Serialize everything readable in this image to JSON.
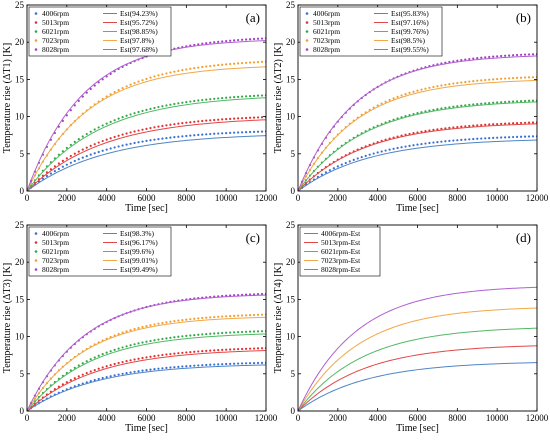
{
  "chart_data": [
    {
      "type": "line",
      "panel_label": "(a)",
      "xlabel": "Time [sec]",
      "ylabel": "Temperature rise (ΔT1) [K]",
      "xlim": [
        0,
        12000
      ],
      "ylim": [
        0,
        25
      ],
      "xticks": [
        0,
        2000,
        4000,
        6000,
        8000,
        10000,
        12000
      ],
      "yticks": [
        0,
        5,
        10,
        15,
        20,
        25
      ],
      "legend_position": "top-left",
      "series": [
        {
          "name": "4006rpm",
          "style": "markers",
          "color": "#3a6fd0",
          "final": 8.3,
          "tau": 3600
        },
        {
          "name": "Est(94.23%)",
          "style": "line",
          "color": "#4f86c6",
          "final": 7.8,
          "tau": 3900
        },
        {
          "name": "5013rpm",
          "style": "markers",
          "color": "#e03030",
          "final": 10.3,
          "tau": 3600
        },
        {
          "name": "Est(95.72%)",
          "style": "line",
          "color": "#e04848",
          "final": 10.0,
          "tau": 3800
        },
        {
          "name": "6021rpm",
          "style": "markers",
          "color": "#33a84a",
          "final": 13.3,
          "tau": 3500
        },
        {
          "name": "Est(98.85%)",
          "style": "line",
          "color": "#55b865",
          "final": 13.0,
          "tau": 3600
        },
        {
          "name": "7023rpm",
          "style": "markers",
          "color": "#f0a030",
          "final": 17.8,
          "tau": 3200
        },
        {
          "name": "Est(97.8%)",
          "style": "line",
          "color": "#f0a848",
          "final": 17.0,
          "tau": 3000
        },
        {
          "name": "8028rpm",
          "style": "markers",
          "color": "#a040c0",
          "final": 20.9,
          "tau": 3000
        },
        {
          "name": "Est(97.68%)",
          "style": "line",
          "color": "#b060d0",
          "final": 20.5,
          "tau": 2800
        }
      ]
    },
    {
      "type": "line",
      "panel_label": "(b)",
      "xlabel": "Time [sec]",
      "ylabel": "Temperature rise (ΔT2) [K]",
      "xlim": [
        0,
        12000
      ],
      "ylim": [
        0,
        25
      ],
      "xticks": [
        0,
        2000,
        4000,
        6000,
        8000,
        10000,
        12000
      ],
      "yticks": [
        0,
        5,
        10,
        15,
        20,
        25
      ],
      "legend_position": "top-left",
      "series": [
        {
          "name": "4006rpm",
          "style": "markers",
          "color": "#3a6fd0",
          "final": 7.6,
          "tau": 3500
        },
        {
          "name": "Est(95.83%)",
          "style": "line",
          "color": "#4f86c6",
          "final": 7.1,
          "tau": 3600
        },
        {
          "name": "5013rpm",
          "style": "markers",
          "color": "#e03030",
          "final": 9.5,
          "tau": 3400
        },
        {
          "name": "Est(97.16%)",
          "style": "line",
          "color": "#e04848",
          "final": 9.3,
          "tau": 3400
        },
        {
          "name": "6021rpm",
          "style": "markers",
          "color": "#33a84a",
          "final": 12.5,
          "tau": 3300
        },
        {
          "name": "Est(99.76%)",
          "style": "line",
          "color": "#55b865",
          "final": 12.3,
          "tau": 3300
        },
        {
          "name": "7023rpm",
          "style": "markers",
          "color": "#f0a030",
          "final": 15.6,
          "tau": 3000
        },
        {
          "name": "Est(98.5%)",
          "style": "line",
          "color": "#f0a848",
          "final": 15.1,
          "tau": 2900
        },
        {
          "name": "8028rpm",
          "style": "markers",
          "color": "#a040c0",
          "final": 18.7,
          "tau": 2900
        },
        {
          "name": "Est(99.55%)",
          "style": "line",
          "color": "#b060d0",
          "final": 18.4,
          "tau": 2800
        }
      ]
    },
    {
      "type": "line",
      "panel_label": "(c)",
      "xlabel": "Time [sec]",
      "ylabel": "Temperature rise (ΔT3) [K]",
      "xlim": [
        0,
        12000
      ],
      "ylim": [
        0,
        25
      ],
      "xticks": [
        0,
        2000,
        4000,
        6000,
        8000,
        10000,
        12000
      ],
      "yticks": [
        0,
        5,
        10,
        15,
        20,
        25
      ],
      "legend_position": "top-left",
      "series": [
        {
          "name": "4006rpm",
          "style": "markers",
          "color": "#3a6fd0",
          "final": 6.7,
          "tau": 3500
        },
        {
          "name": "Est(98.3%)",
          "style": "line",
          "color": "#4f86c6",
          "final": 6.4,
          "tau": 3500
        },
        {
          "name": "5013rpm",
          "style": "markers",
          "color": "#e03030",
          "final": 8.7,
          "tau": 3400
        },
        {
          "name": "Est(96.17%)",
          "style": "line",
          "color": "#e04848",
          "final": 8.4,
          "tau": 3500
        },
        {
          "name": "6021rpm",
          "style": "markers",
          "color": "#33a84a",
          "final": 11.0,
          "tau": 3200
        },
        {
          "name": "Est(99.6%)",
          "style": "line",
          "color": "#55b865",
          "final": 10.6,
          "tau": 3200
        },
        {
          "name": "7023rpm",
          "style": "markers",
          "color": "#f0a030",
          "final": 13.2,
          "tau": 3000
        },
        {
          "name": "Est(99.01%)",
          "style": "line",
          "color": "#f0a848",
          "final": 12.8,
          "tau": 2900
        },
        {
          "name": "8028rpm",
          "style": "markers",
          "color": "#a040c0",
          "final": 16.0,
          "tau": 2900
        },
        {
          "name": "Est(99.49%)",
          "style": "line",
          "color": "#b060d0",
          "final": 15.8,
          "tau": 2800
        }
      ]
    },
    {
      "type": "line",
      "panel_label": "(d)",
      "xlabel": "Time [sec]",
      "ylabel": "Temperature rise (ΔT4) [K]",
      "xlim": [
        0,
        12000
      ],
      "ylim": [
        0,
        25
      ],
      "xticks": [
        0,
        2000,
        4000,
        6000,
        8000,
        10000,
        12000
      ],
      "yticks": [
        0,
        5,
        10,
        15,
        20,
        25
      ],
      "legend_position": "top-left",
      "series": [
        {
          "name": "4006rpm-Est",
          "style": "line",
          "color": "#4f86c6",
          "final": 6.7,
          "tau": 3400
        },
        {
          "name": "5013rpm-Est",
          "style": "line",
          "color": "#e04848",
          "final": 9.0,
          "tau": 3300
        },
        {
          "name": "6021rpm-Est",
          "style": "line",
          "color": "#55b865",
          "final": 11.4,
          "tau": 3200
        },
        {
          "name": "7023rpm-Est",
          "style": "line",
          "color": "#f0a848",
          "final": 14.1,
          "tau": 3000
        },
        {
          "name": "8028rpm-Est",
          "style": "line",
          "color": "#b060d0",
          "final": 16.9,
          "tau": 2900
        }
      ]
    }
  ]
}
